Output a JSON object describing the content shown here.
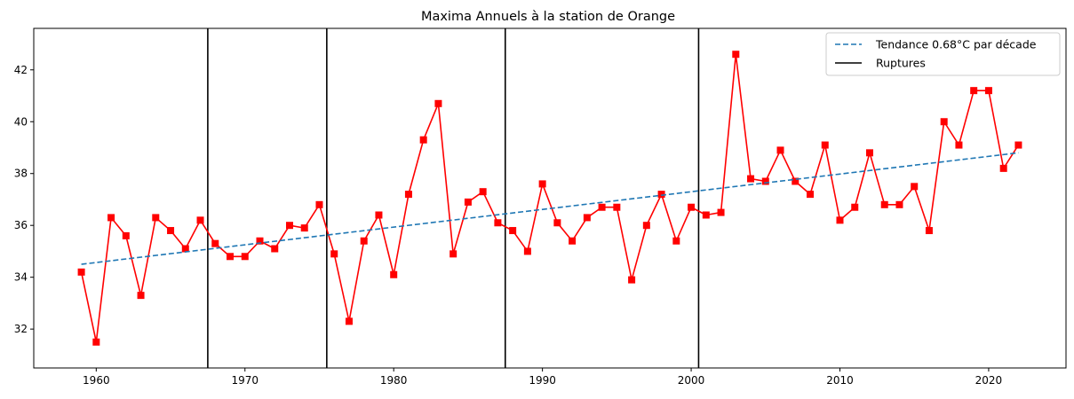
{
  "chart_data": {
    "type": "line",
    "title": "Maxima Annuels à la station de Orange",
    "xlabel": "",
    "ylabel": "",
    "xlim": [
      1955.8,
      2025.2
    ],
    "ylim": [
      30.5,
      43.6
    ],
    "xticks": [
      1960,
      1970,
      1980,
      1990,
      2000,
      2010,
      2020
    ],
    "yticks": [
      32,
      34,
      36,
      38,
      40,
      42
    ],
    "grid": false,
    "legend_position": "top-right",
    "legend": [
      {
        "label": "Tendance 0.68°C par décade",
        "style": "dashed",
        "color": "#1f77b4"
      },
      {
        "label": "Ruptures",
        "style": "solid",
        "color": "#000000"
      }
    ],
    "series": [
      {
        "color": "#ff0000",
        "marker": "square",
        "x": [
          1959,
          1960,
          1961,
          1962,
          1963,
          1964,
          1965,
          1966,
          1967,
          1968,
          1969,
          1970,
          1971,
          1972,
          1973,
          1974,
          1975,
          1976,
          1977,
          1978,
          1979,
          1980,
          1981,
          1982,
          1983,
          1984,
          1985,
          1986,
          1987,
          1988,
          1989,
          1990,
          1991,
          1992,
          1993,
          1994,
          1995,
          1996,
          1997,
          1998,
          1999,
          2000,
          2001,
          2002,
          2003,
          2004,
          2005,
          2006,
          2007,
          2008,
          2009,
          2010,
          2011,
          2012,
          2013,
          2014,
          2015,
          2016,
          2017,
          2018,
          2019,
          2020,
          2021,
          2022
        ],
        "y": [
          34.2,
          31.5,
          36.3,
          35.6,
          33.3,
          36.3,
          35.8,
          35.1,
          36.2,
          35.3,
          34.8,
          34.8,
          35.4,
          35.1,
          36.0,
          35.9,
          36.8,
          34.9,
          32.3,
          35.4,
          36.4,
          34.1,
          37.2,
          39.3,
          40.7,
          34.9,
          36.9,
          37.3,
          36.1,
          35.8,
          35.0,
          37.6,
          36.1,
          35.4,
          36.3,
          36.7,
          36.7,
          33.9,
          36.0,
          37.2,
          35.4,
          36.7,
          36.4,
          36.5,
          42.6,
          37.8,
          37.7,
          38.9,
          37.7,
          37.2,
          39.1,
          36.2,
          36.7,
          38.8,
          36.8,
          36.8,
          37.5,
          35.8,
          40.0,
          39.1,
          41.2,
          41.2,
          38.2,
          39.1
        ]
      }
    ],
    "trend": {
      "x": [
        1959,
        2022
      ],
      "y": [
        34.5,
        38.8
      ],
      "color": "#1f77b4"
    },
    "ruptures": [
      1967.5,
      1975.5,
      1987.5,
      2000.5
    ],
    "rupture_color": "#000000"
  }
}
